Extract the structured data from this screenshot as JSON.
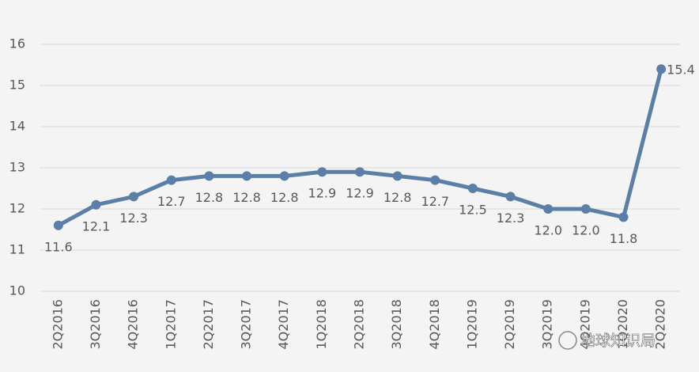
{
  "chart_data": {
    "type": "line",
    "categories": [
      "2Q2016",
      "3Q2016",
      "4Q2016",
      "1Q2017",
      "2Q2017",
      "3Q2017",
      "4Q2017",
      "1Q2018",
      "2Q2018",
      "3Q2018",
      "4Q2018",
      "1Q2019",
      "2Q2019",
      "3Q2019",
      "4Q2019",
      "1Q2020",
      "2Q2020"
    ],
    "values": [
      11.6,
      12.1,
      12.3,
      12.7,
      12.8,
      12.8,
      12.8,
      12.9,
      12.9,
      12.8,
      12.7,
      12.5,
      12.3,
      12.0,
      12.0,
      11.8,
      15.4
    ],
    "value_labels": [
      "11.6",
      "12.1",
      "12.3",
      "12.7",
      "12.8",
      "12.8",
      "12.8",
      "12.9",
      "12.9",
      "12.8",
      "12.7",
      "12.5",
      "12.3",
      "12.0",
      "12.0",
      "11.8",
      "15.4"
    ],
    "color": "#5b7fa6",
    "ylim": [
      10,
      16
    ],
    "yticks": [
      10,
      11,
      12,
      13,
      14,
      15,
      16
    ],
    "grid": true,
    "watermark": "地球知识局"
  }
}
